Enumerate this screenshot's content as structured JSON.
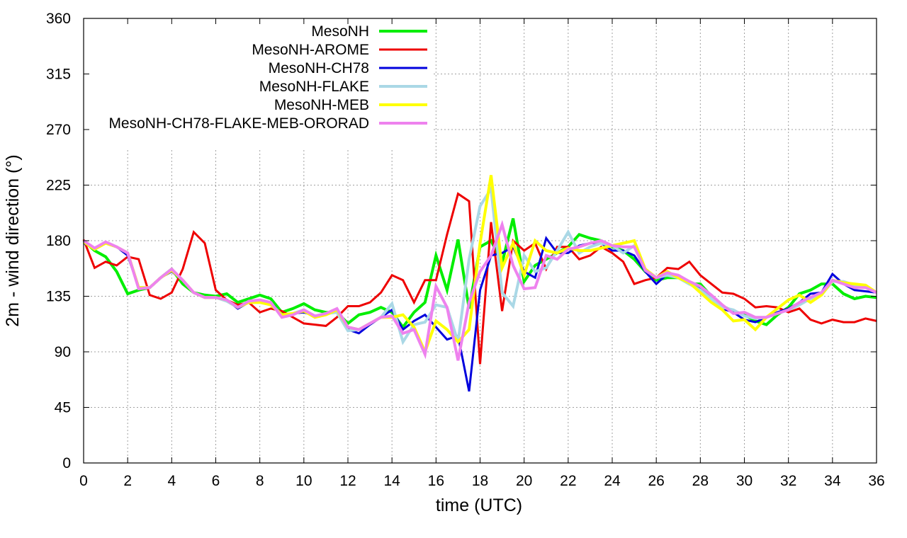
{
  "chart_data": {
    "type": "line",
    "title": "",
    "xlabel": "time (UTC)",
    "ylabel": "2m - wind direction (°)",
    "xlim": [
      0,
      36
    ],
    "ylim": [
      0,
      360
    ],
    "xticks": [
      0,
      2,
      4,
      6,
      8,
      10,
      12,
      14,
      16,
      18,
      20,
      22,
      24,
      26,
      28,
      30,
      32,
      34,
      36
    ],
    "yticks": [
      0,
      45,
      90,
      135,
      180,
      225,
      270,
      315,
      360
    ],
    "grid": true,
    "legend_position": "top-left",
    "series": [
      {
        "name": "MesoNH",
        "color": "#00ee00",
        "width": 4,
        "x": [
          0,
          0.5,
          1,
          1.5,
          2,
          2.5,
          3,
          3.5,
          4,
          4.5,
          5,
          5.5,
          6,
          6.5,
          7,
          7.5,
          8,
          8.5,
          9,
          9.5,
          10,
          10.5,
          11,
          11.5,
          12,
          12.5,
          13,
          13.5,
          14,
          14.5,
          15,
          15.5,
          16,
          16.5,
          17,
          17.5,
          18,
          18.5,
          19,
          19.5,
          20,
          20.5,
          21,
          21.5,
          22,
          22.5,
          23,
          23.5,
          24,
          24.5,
          25,
          25.5,
          26,
          26.5,
          27,
          27.5,
          28,
          28.5,
          29,
          29.5,
          30,
          30.5,
          31,
          31.5,
          32,
          32.5,
          33,
          33.5,
          34,
          34.5,
          35,
          35.5,
          36
        ],
        "y": [
          180,
          172,
          167,
          155,
          137,
          140,
          142,
          150,
          157,
          145,
          138,
          136,
          135,
          137,
          130,
          133,
          136,
          133,
          122,
          125,
          129,
          124,
          122,
          122,
          113,
          120,
          122,
          126,
          122,
          110,
          122,
          130,
          168,
          140,
          181,
          125,
          175,
          180,
          162,
          198,
          147,
          160,
          165,
          170,
          175,
          185,
          182,
          180,
          175,
          172,
          165,
          155,
          148,
          150,
          150,
          145,
          145,
          135,
          127,
          123,
          120,
          115,
          112,
          120,
          126,
          137,
          140,
          145,
          145,
          137,
          133,
          135,
          134
        ]
      },
      {
        "name": "MesoNH-AROME",
        "color": "#ee0000",
        "width": 3,
        "x": [
          0,
          0.5,
          1,
          1.5,
          2,
          2.5,
          3,
          3.5,
          4,
          4.5,
          5,
          5.5,
          6,
          6.5,
          7,
          7.5,
          8,
          8.5,
          9,
          9.5,
          10,
          10.5,
          11,
          11.5,
          12,
          12.5,
          13,
          13.5,
          14,
          14.5,
          15,
          15.5,
          16,
          16.5,
          17,
          17.5,
          18,
          18.5,
          19,
          19.5,
          20,
          20.5,
          21,
          21.5,
          22,
          22.5,
          23,
          23.5,
          24,
          24.5,
          25,
          25.5,
          26,
          26.5,
          27,
          27.5,
          28,
          28.5,
          29,
          29.5,
          30,
          30.5,
          31,
          31.5,
          32,
          32.5,
          33,
          33.5,
          34,
          34.5,
          35,
          35.5,
          36
        ],
        "y": [
          181,
          158,
          163,
          160,
          167,
          165,
          136,
          133,
          138,
          157,
          187,
          178,
          140,
          132,
          128,
          130,
          122,
          125,
          123,
          118,
          113,
          112,
          111,
          118,
          127,
          127,
          130,
          138,
          152,
          148,
          130,
          148,
          148,
          185,
          218,
          212,
          80,
          195,
          123,
          180,
          172,
          178,
          157,
          175,
          175,
          165,
          168,
          175,
          170,
          163,
          145,
          148,
          150,
          158,
          157,
          163,
          152,
          145,
          138,
          137,
          133,
          126,
          127,
          126,
          122,
          125,
          116,
          113,
          116,
          114,
          114,
          117,
          115
        ]
      },
      {
        "name": "MesoNH-CH78",
        "color": "#0000dd",
        "width": 3,
        "x": [
          0,
          0.5,
          1,
          1.5,
          2,
          2.5,
          3,
          3.5,
          4,
          4.5,
          5,
          5.5,
          6,
          6.5,
          7,
          7.5,
          8,
          8.5,
          9,
          9.5,
          10,
          10.5,
          11,
          11.5,
          12,
          12.5,
          13,
          13.5,
          14,
          14.5,
          15,
          15.5,
          16,
          16.5,
          17,
          17.5,
          18,
          18.5,
          19,
          19.5,
          20,
          20.5,
          21,
          21.5,
          22,
          22.5,
          23,
          23.5,
          24,
          24.5,
          25,
          25.5,
          26,
          26.5,
          27,
          27.5,
          28,
          28.5,
          29,
          29.5,
          30,
          30.5,
          31,
          31.5,
          32,
          32.5,
          33,
          33.5,
          34,
          34.5,
          35,
          35.5,
          36
        ],
        "y": [
          178,
          174,
          178,
          175,
          168,
          142,
          142,
          150,
          155,
          148,
          138,
          134,
          134,
          132,
          125,
          130,
          130,
          130,
          120,
          121,
          122,
          119,
          120,
          123,
          108,
          105,
          112,
          118,
          124,
          108,
          115,
          120,
          110,
          100,
          103,
          58,
          140,
          168,
          170,
          175,
          155,
          150,
          182,
          170,
          170,
          176,
          178,
          178,
          172,
          172,
          168,
          155,
          145,
          153,
          150,
          147,
          142,
          133,
          125,
          122,
          116,
          114,
          118,
          122,
          125,
          130,
          137,
          138,
          153,
          145,
          140,
          139,
          138
        ]
      },
      {
        "name": "MesoNH-FLAKE",
        "color": "#aad8e6",
        "width": 4,
        "x": [
          0,
          0.5,
          1,
          1.5,
          2,
          2.5,
          3,
          3.5,
          4,
          4.5,
          5,
          5.5,
          6,
          6.5,
          7,
          7.5,
          8,
          8.5,
          9,
          9.5,
          10,
          10.5,
          11,
          11.5,
          12,
          12.5,
          13,
          13.5,
          14,
          14.5,
          15,
          15.5,
          16,
          16.5,
          17,
          17.5,
          18,
          18.5,
          19,
          19.5,
          20,
          20.5,
          21,
          21.5,
          22,
          22.5,
          23,
          23.5,
          24,
          24.5,
          25,
          25.5,
          26,
          26.5,
          27,
          27.5,
          28,
          28.5,
          29,
          29.5,
          30,
          30.5,
          31,
          31.5,
          32,
          32.5,
          33,
          33.5,
          34,
          34.5,
          35,
          35.5,
          36
        ],
        "y": [
          179,
          174,
          178,
          175,
          170,
          142,
          142,
          150,
          156,
          148,
          138,
          134,
          134,
          131,
          126,
          130,
          130,
          129,
          120,
          121,
          124,
          119,
          121,
          122,
          107,
          108,
          113,
          118,
          129,
          98,
          112,
          114,
          128,
          126,
          98,
          165,
          208,
          222,
          138,
          127,
          168,
          155,
          158,
          172,
          187,
          170,
          175,
          178,
          176,
          170,
          176,
          157,
          150,
          152,
          150,
          145,
          140,
          133,
          126,
          124,
          119,
          117,
          118,
          121,
          124,
          128,
          133,
          136,
          147,
          147,
          144,
          142,
          138
        ]
      },
      {
        "name": "MesoNH-MEB",
        "color": "#ffff00",
        "width": 4,
        "x": [
          0,
          0.5,
          1,
          1.5,
          2,
          2.5,
          3,
          3.5,
          4,
          4.5,
          5,
          5.5,
          6,
          6.5,
          7,
          7.5,
          8,
          8.5,
          9,
          9.5,
          10,
          10.5,
          11,
          11.5,
          12,
          12.5,
          13,
          13.5,
          14,
          14.5,
          15,
          15.5,
          16,
          16.5,
          17,
          17.5,
          18,
          18.5,
          19,
          19.5,
          20,
          20.5,
          21,
          21.5,
          22,
          22.5,
          23,
          23.5,
          24,
          24.5,
          25,
          25.5,
          26,
          26.5,
          27,
          27.5,
          28,
          28.5,
          29,
          29.5,
          30,
          30.5,
          31,
          31.5,
          32,
          32.5,
          33,
          33.5,
          34,
          34.5,
          35,
          35.5,
          36
        ],
        "y": [
          179,
          173,
          178,
          175,
          170,
          142,
          142,
          150,
          156,
          148,
          138,
          134,
          134,
          132,
          126,
          130,
          130,
          128,
          120,
          121,
          123,
          118,
          120,
          124,
          110,
          108,
          113,
          118,
          118,
          120,
          110,
          90,
          115,
          108,
          98,
          108,
          178,
          233,
          158,
          178,
          152,
          180,
          172,
          170,
          174,
          172,
          172,
          174,
          176,
          178,
          180,
          157,
          150,
          155,
          150,
          146,
          138,
          130,
          124,
          115,
          116,
          108,
          118,
          125,
          132,
          136,
          130,
          136,
          148,
          146,
          145,
          144,
          138
        ]
      },
      {
        "name": "MesoNH-CH78-FLAKE-MEB-ORORAD",
        "color": "#ee82ee",
        "width": 4,
        "x": [
          0,
          0.5,
          1,
          1.5,
          2,
          2.5,
          3,
          3.5,
          4,
          4.5,
          5,
          5.5,
          6,
          6.5,
          7,
          7.5,
          8,
          8.5,
          9,
          9.5,
          10,
          10.5,
          11,
          11.5,
          12,
          12.5,
          13,
          13.5,
          14,
          14.5,
          15,
          15.5,
          16,
          16.5,
          17,
          17.5,
          18,
          18.5,
          19,
          19.5,
          20,
          20.5,
          21,
          21.5,
          22,
          22.5,
          23,
          23.5,
          24,
          24.5,
          25,
          25.5,
          26,
          26.5,
          27,
          27.5,
          28,
          28.5,
          29,
          29.5,
          30,
          30.5,
          31,
          31.5,
          32,
          32.5,
          33,
          33.5,
          34,
          34.5,
          35,
          35.5,
          36
        ],
        "y": [
          180,
          174,
          179,
          175,
          170,
          141,
          142,
          150,
          157,
          148,
          138,
          134,
          134,
          132,
          126,
          131,
          132,
          130,
          118,
          120,
          124,
          119,
          121,
          125,
          110,
          108,
          113,
          118,
          119,
          105,
          108,
          88,
          143,
          126,
          83,
          130,
          155,
          168,
          193,
          160,
          141,
          142,
          168,
          165,
          173,
          175,
          178,
          180,
          176,
          175,
          175,
          156,
          150,
          154,
          152,
          147,
          143,
          136,
          128,
          121,
          122,
          118,
          118,
          121,
          124,
          130,
          134,
          138,
          148,
          145,
          142,
          142,
          138
        ]
      }
    ]
  }
}
